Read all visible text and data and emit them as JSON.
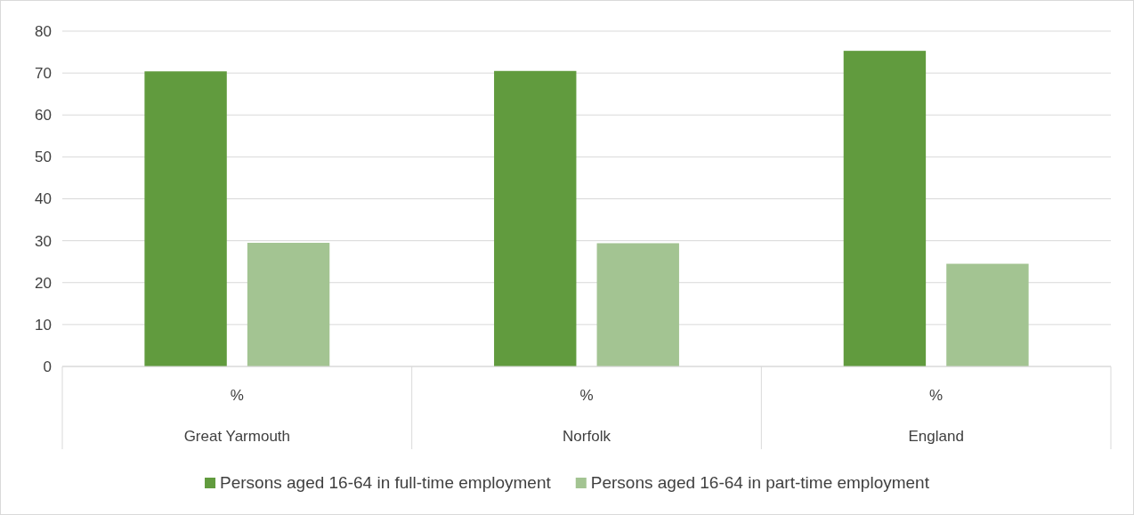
{
  "chart_data": {
    "type": "bar",
    "categories": [
      "Great Yarmouth",
      "Norfolk",
      "England"
    ],
    "series": [
      {
        "name": "Persons aged 16-64 in full-time employment",
        "color": "#619b3e",
        "values": [
          70.4,
          70.5,
          75.3
        ]
      },
      {
        "name": "Persons aged 16-64 in part-time employment",
        "color": "#a3c492",
        "values": [
          29.5,
          29.4,
          24.5
        ]
      }
    ],
    "ylim": [
      0,
      80
    ],
    "yticks": [
      0,
      10,
      20,
      30,
      40,
      50,
      60,
      70,
      80
    ],
    "grid": "y",
    "legend": "bottom",
    "annotations": [
      "%",
      "%",
      "%"
    ]
  }
}
